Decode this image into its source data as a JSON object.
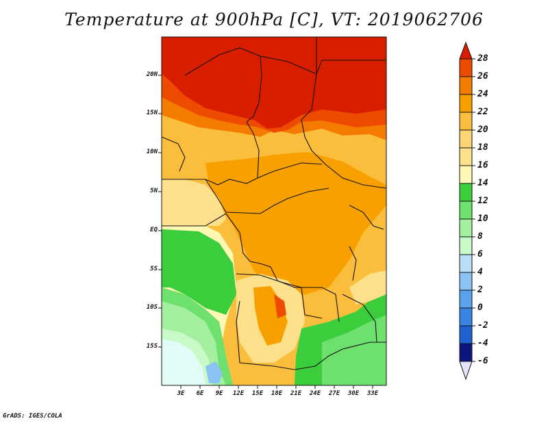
{
  "title": "Temperature at 900hPa [C], VT: 2019062706",
  "credit": "GrADS: IGES/COLA",
  "map": {
    "lat_labels": [
      "20N",
      "15N",
      "10N",
      "5N",
      "EQ",
      "5S",
      "10S",
      "15S"
    ],
    "lon_labels": [
      "3E",
      "6E",
      "9E",
      "12E",
      "15E",
      "18E",
      "21E",
      "24E",
      "27E",
      "30E",
      "33E"
    ]
  },
  "colorbar": {
    "levels": [
      "28",
      "26",
      "24",
      "22",
      "20",
      "18",
      "16",
      "14",
      "12",
      "10",
      "8",
      "6",
      "4",
      "2",
      "0",
      "-2",
      "-4",
      "-6"
    ],
    "colors_top_to_bottom": [
      "#d91e00",
      "#ee4a00",
      "#f57a00",
      "#f8a000",
      "#fbbe3c",
      "#fde08c",
      "#fff7b4",
      "#3ccd3c",
      "#6ee06e",
      "#a5f0a0",
      "#c8fac8",
      "#b8ddf8",
      "#8cc2f4",
      "#5aa2ec",
      "#3a84e4",
      "#1e62d4",
      "#0e40b8",
      "#0c1480",
      "#e4e4ff"
    ]
  }
}
